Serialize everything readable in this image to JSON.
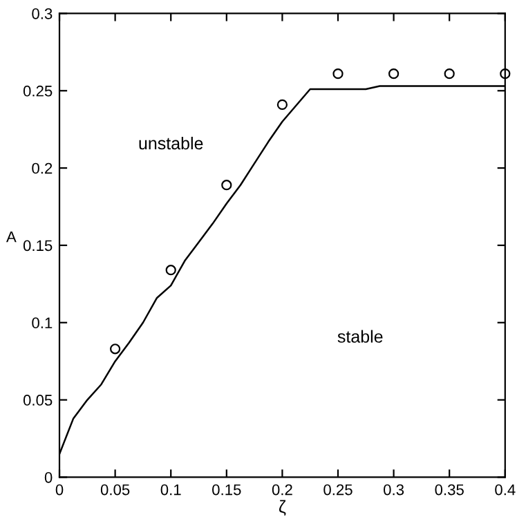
{
  "chart_data": {
    "type": "line",
    "xlabel": "ζ",
    "ylabel": "A",
    "xlim": [
      0,
      0.4
    ],
    "ylim": [
      0,
      0.3
    ],
    "xticks": [
      0,
      0.05,
      0.1,
      0.15,
      0.2,
      0.25,
      0.3,
      0.35,
      0.4
    ],
    "yticks": [
      0,
      0.05,
      0.1,
      0.15,
      0.2,
      0.25,
      0.3
    ],
    "annotations": [
      "unstable",
      "stable"
    ],
    "grid": false,
    "legend": false,
    "series": [
      {
        "color": "#000000",
        "marker": "none",
        "line_style": "solid",
        "x": [
          0,
          0.0125,
          0.025,
          0.0375,
          0.05,
          0.0625,
          0.075,
          0.0875,
          0.1,
          0.1125,
          0.125,
          0.1375,
          0.15,
          0.1625,
          0.175,
          0.1875,
          0.2,
          0.225,
          0.275,
          0.2875,
          0.4
        ],
        "values": [
          0.015,
          0.038,
          0.05,
          0.06,
          0.075,
          0.087,
          0.1,
          0.116,
          0.124,
          0.14,
          0.152,
          0.164,
          0.177,
          0.189,
          0.203,
          0.217,
          0.23,
          0.251,
          0.251,
          0.253,
          0.253
        ]
      },
      {
        "type": "scatter",
        "color": "#000000",
        "marker": "circle",
        "x": [
          0.05,
          0.1,
          0.15,
          0.2,
          0.25,
          0.3,
          0.35,
          0.4
        ],
        "values": [
          0.083,
          0.134,
          0.189,
          0.241,
          0.261,
          0.261,
          0.261,
          0.261
        ]
      }
    ]
  }
}
